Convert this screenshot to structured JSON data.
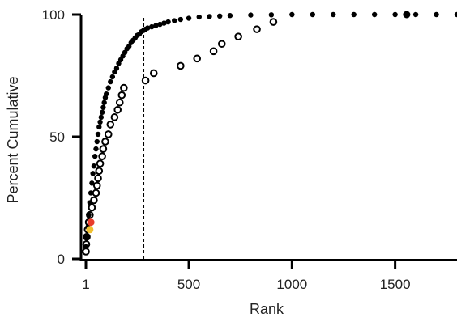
{
  "chart_data": {
    "type": "scatter",
    "xlabel": "Rank",
    "ylabel": "Percent Cumulative",
    "xlim": [
      1,
      1800
    ],
    "ylim": [
      0,
      100
    ],
    "x_ticks": [
      {
        "value": 1,
        "label": "1"
      },
      {
        "value": 500,
        "label": "500"
      },
      {
        "value": 1000,
        "label": "1000"
      },
      {
        "value": 1500,
        "label": "1500"
      }
    ],
    "y_ticks": [
      {
        "value": 0,
        "label": "0"
      },
      {
        "value": 50,
        "label": "50"
      },
      {
        "value": 100,
        "label": "100"
      }
    ],
    "grid": false,
    "reference_line": {
      "x": 280,
      "style": "dashed",
      "color": "#000000"
    },
    "series": [
      {
        "style": "filled",
        "color": "#000000",
        "points": [
          [
            1,
            5
          ],
          [
            5,
            9
          ],
          [
            10,
            13
          ],
          [
            15,
            18
          ],
          [
            20,
            23
          ],
          [
            25,
            27
          ],
          [
            30,
            31
          ],
          [
            35,
            35
          ],
          [
            40,
            38
          ],
          [
            45,
            42
          ],
          [
            50,
            45
          ],
          [
            55,
            48
          ],
          [
            60,
            51
          ],
          [
            65,
            54
          ],
          [
            70,
            56
          ],
          [
            75,
            58
          ],
          [
            80,
            60
          ],
          [
            85,
            62
          ],
          [
            90,
            64
          ],
          [
            95,
            66
          ],
          [
            100,
            67.5
          ],
          [
            110,
            70
          ],
          [
            120,
            72.5
          ],
          [
            130,
            74.5
          ],
          [
            140,
            76.5
          ],
          [
            150,
            78
          ],
          [
            160,
            80
          ],
          [
            170,
            81.5
          ],
          [
            180,
            83
          ],
          [
            190,
            84.5
          ],
          [
            200,
            86
          ],
          [
            210,
            87
          ],
          [
            220,
            88.5
          ],
          [
            230,
            89.5
          ],
          [
            240,
            90.5
          ],
          [
            250,
            91.5
          ],
          [
            260,
            92
          ],
          [
            270,
            93
          ],
          [
            280,
            93.5
          ],
          [
            290,
            94
          ],
          [
            300,
            94.5
          ],
          [
            320,
            95
          ],
          [
            340,
            95.5
          ],
          [
            360,
            96
          ],
          [
            380,
            96.5
          ],
          [
            400,
            97
          ],
          [
            430,
            97.5
          ],
          [
            460,
            98
          ],
          [
            500,
            98.5
          ],
          [
            550,
            99
          ],
          [
            600,
            99.2
          ],
          [
            650,
            99.4
          ],
          [
            700,
            99.6
          ],
          [
            800,
            99.8
          ],
          [
            900,
            99.9
          ],
          [
            1000,
            100
          ],
          [
            1100,
            100
          ],
          [
            1200,
            100
          ],
          [
            1300,
            100
          ],
          [
            1400,
            100
          ],
          [
            1500,
            100
          ],
          [
            1556,
            100
          ],
          [
            1600,
            100
          ],
          [
            1700,
            100
          ],
          [
            1800,
            100
          ]
        ]
      },
      {
        "style": "open",
        "color": "#000000",
        "points": [
          [
            1,
            3
          ],
          [
            3,
            6
          ],
          [
            5,
            9
          ],
          [
            10,
            12
          ],
          [
            15,
            15
          ],
          [
            20,
            18
          ],
          [
            30,
            21
          ],
          [
            40,
            24
          ],
          [
            50,
            27
          ],
          [
            55,
            30
          ],
          [
            60,
            33
          ],
          [
            65,
            36
          ],
          [
            70,
            39
          ],
          [
            80,
            42
          ],
          [
            85,
            45
          ],
          [
            95,
            48
          ],
          [
            110,
            51
          ],
          [
            120,
            55
          ],
          [
            140,
            58
          ],
          [
            155,
            61
          ],
          [
            165,
            64
          ],
          [
            175,
            67
          ],
          [
            185,
            70
          ],
          [
            290,
            73
          ],
          [
            330,
            76
          ],
          [
            460,
            79
          ],
          [
            540,
            82
          ],
          [
            620,
            85
          ],
          [
            660,
            88
          ],
          [
            740,
            91
          ],
          [
            830,
            94
          ],
          [
            910,
            97
          ]
        ]
      },
      {
        "style": "highlight",
        "points": [
          {
            "x": 20,
            "y": 12,
            "color": "#f0c030"
          },
          {
            "x": 25,
            "y": 15,
            "color": "#e83c2c"
          },
          {
            "x": 1556,
            "y": 100,
            "color": "#000000"
          }
        ]
      }
    ]
  }
}
